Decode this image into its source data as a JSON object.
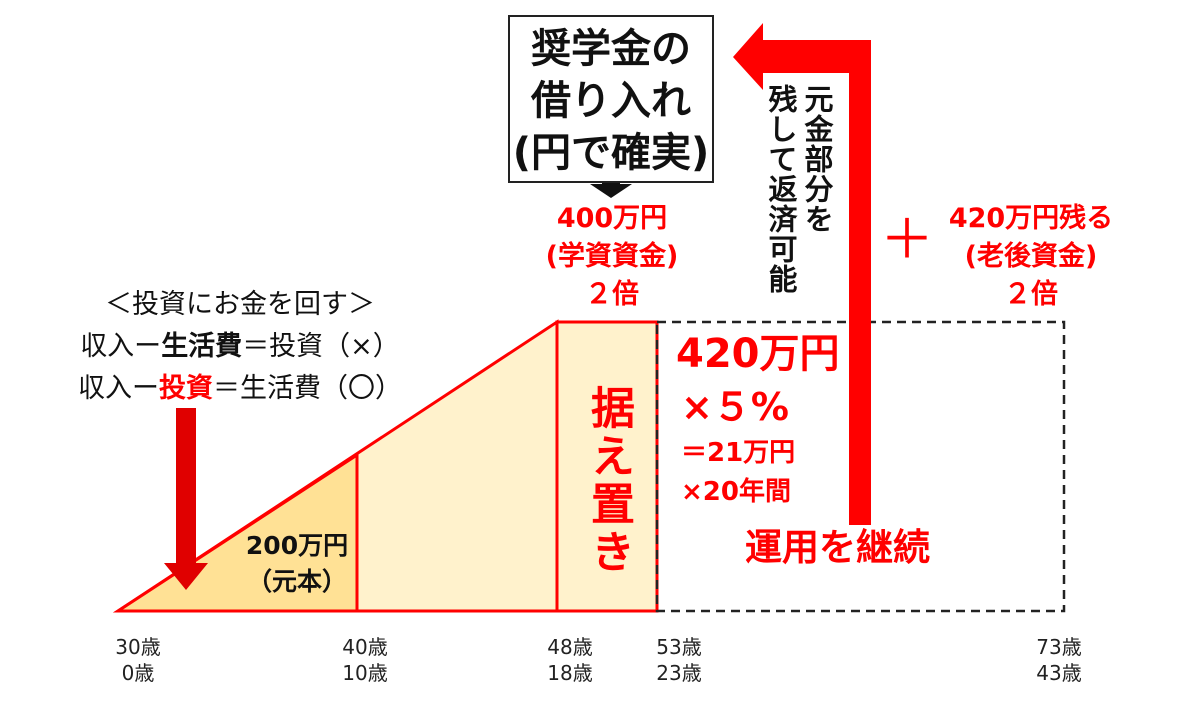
{
  "loan_box": {
    "line1": "奨学金の",
    "line2": "借り入れ",
    "line3": "(円で確実)"
  },
  "return_note": {
    "line1": "元金部分を",
    "line2": "残して返済可能"
  },
  "tuition": {
    "amount": "400万円",
    "label": "(学資資金)",
    "multiple": "２倍"
  },
  "retirement": {
    "plus": "＋",
    "amount": "420万円残る",
    "label": "(老後資金)",
    "multiple": "２倍"
  },
  "investing_rule": {
    "title": "＜投資にお金を回す＞",
    "wrong": {
      "a": "収入ー",
      "b": "生活費",
      "c": "＝投資（×）"
    },
    "right": {
      "a": "収入ー",
      "b": "投資",
      "c": "＝生活費（〇）"
    }
  },
  "principal": {
    "amount": "200万円",
    "label": "（元本）"
  },
  "deferral": {
    "label": "据え置き"
  },
  "operation": {
    "amount": "420万円",
    "rate": "×５%",
    "yearly": "＝21万円",
    "period": "×20年間",
    "continue": "運用を継続"
  },
  "timeline": [
    {
      "age": "30歳",
      "years": "0歳"
    },
    {
      "age": "40歳",
      "years": "10歳"
    },
    {
      "age": "48歳",
      "years": "18歳"
    },
    {
      "age": "53歳",
      "years": "23歳"
    },
    {
      "age": "73歳",
      "years": "43歳"
    }
  ],
  "colors": {
    "accent": "#ff0000",
    "light_fill": "#fff2cc",
    "dark_fill": "#ffe195",
    "outline": "#ff0000",
    "dashed": "#222222"
  },
  "icons": [
    "arrow-down-icon",
    "return-arrow-icon"
  ]
}
